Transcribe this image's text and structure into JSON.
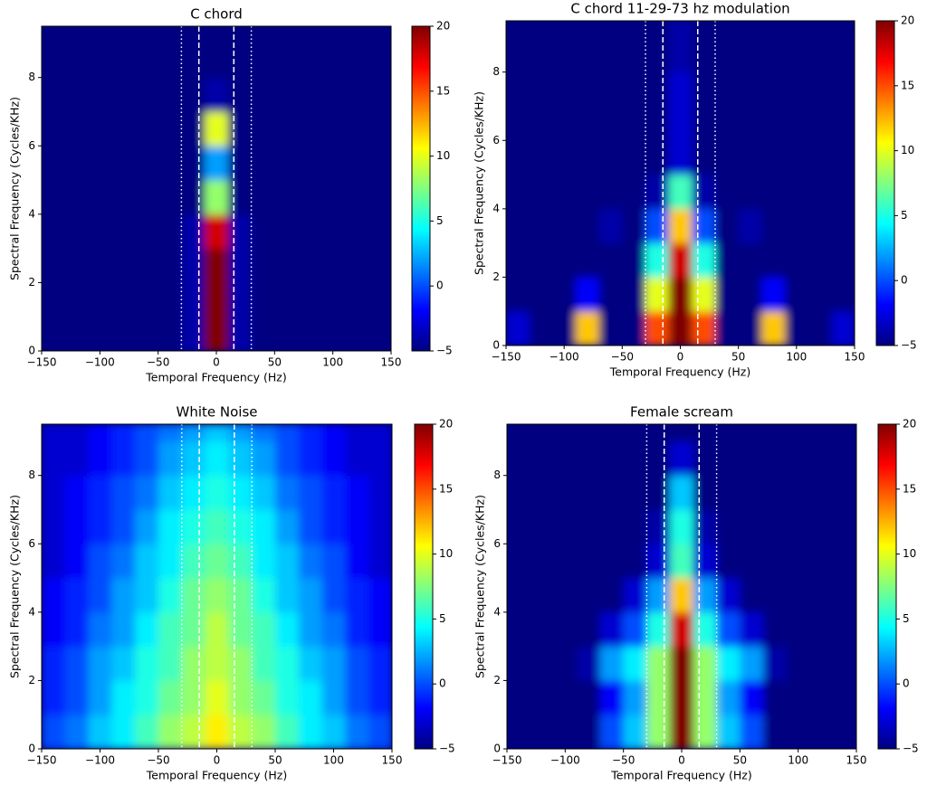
{
  "chart_data": [
    {
      "type": "heatmap",
      "title": "C chord",
      "xlabel": "Temporal Frequency (Hz)",
      "ylabel": "Spectral Frequency (Cycles/KHz)",
      "colormap": "jet",
      "xlim": [
        -150,
        150
      ],
      "ylim": [
        0,
        9.5
      ],
      "clim": [
        -5,
        20
      ],
      "xticks": [
        {
          "value": -150,
          "label": "−150"
        },
        {
          "value": -100,
          "label": "−100"
        },
        {
          "value": -50,
          "label": "−50"
        },
        0,
        50,
        100,
        150
      ],
      "yticks": [
        0,
        2,
        4,
        6,
        8
      ],
      "cticks": [
        {
          "value": -5,
          "label": "−5"
        },
        0,
        5,
        10,
        15,
        20
      ],
      "dashed_lines": [
        -15,
        15
      ],
      "dotted_lines": [
        -30,
        30
      ],
      "x_bins": [
        -150,
        -130,
        -110,
        -90,
        -70,
        -50,
        -30,
        -10,
        10,
        30,
        50,
        70,
        90,
        110,
        130,
        150
      ],
      "y_bins": [
        0,
        1,
        2,
        3,
        4,
        5,
        6,
        7,
        8,
        9,
        9.5
      ],
      "z": [
        [
          -5,
          -5,
          -5,
          -5,
          -5,
          -5,
          -4,
          20,
          -4,
          -5,
          -5,
          -5,
          -5,
          -5,
          -5
        ],
        [
          -5,
          -5,
          -5,
          -5,
          -5,
          -5,
          -4,
          20,
          -4,
          -5,
          -5,
          -5,
          -5,
          -5,
          -5
        ],
        [
          -5,
          -5,
          -5,
          -5,
          -5,
          -5,
          -4,
          20,
          -4,
          -5,
          -5,
          -5,
          -5,
          -5,
          -5
        ],
        [
          -5,
          -5,
          -5,
          -5,
          -5,
          -5,
          -4,
          18,
          -4,
          -5,
          -5,
          -5,
          -5,
          -5,
          -5
        ],
        [
          -5,
          -5,
          -5,
          -5,
          -5,
          -5,
          -5,
          8,
          -5,
          -5,
          -5,
          -5,
          -5,
          -5,
          -5
        ],
        [
          -5,
          -5,
          -5,
          -5,
          -5,
          -5,
          -5,
          2,
          -5,
          -5,
          -5,
          -5,
          -5,
          -5,
          -5
        ],
        [
          -5,
          -5,
          -5,
          -5,
          -5,
          -5,
          -5,
          10,
          -5,
          -5,
          -5,
          -5,
          -5,
          -5,
          -5
        ],
        [
          -5,
          -5,
          -5,
          -5,
          -5,
          -5,
          -5,
          -4,
          -5,
          -5,
          -5,
          -5,
          -5,
          -5,
          -5
        ],
        [
          -5,
          -5,
          -5,
          -5,
          -5,
          -5,
          -5,
          -5,
          -5,
          -5,
          -5,
          -5,
          -5,
          -5,
          -5
        ],
        [
          -5,
          -5,
          -5,
          -5,
          -5,
          -5,
          -5,
          -5,
          -5,
          -5,
          -5,
          -5,
          -5,
          -5,
          -5
        ]
      ]
    },
    {
      "type": "heatmap",
      "title": "C chord 11-29-73 hz modulation",
      "xlabel": "Temporal Frequency (Hz)",
      "ylabel": "Spectral Frequency (Cycles/KHz)",
      "colormap": "jet",
      "xlim": [
        -150,
        150
      ],
      "ylim": [
        0,
        9.5
      ],
      "clim": [
        -5,
        20
      ],
      "xticks": [
        {
          "value": -150,
          "label": "−150"
        },
        {
          "value": -100,
          "label": "−100"
        },
        {
          "value": -50,
          "label": "−50"
        },
        0,
        50,
        100,
        150
      ],
      "yticks": [
        0,
        2,
        4,
        6,
        8
      ],
      "cticks": [
        {
          "value": -5,
          "label": "−5"
        },
        0,
        5,
        10,
        15,
        20
      ],
      "dashed_lines": [
        -15,
        15
      ],
      "dotted_lines": [
        -30,
        30
      ],
      "x_bins": [
        -150,
        -130,
        -110,
        -90,
        -70,
        -50,
        -30,
        -10,
        10,
        30,
        50,
        70,
        90,
        110,
        130,
        150
      ],
      "y_bins": [
        0,
        1,
        2,
        3,
        4,
        5,
        6,
        7,
        8,
        9,
        9.5
      ],
      "z": [
        [
          -3,
          -5,
          -5,
          12,
          -5,
          -5,
          15,
          20,
          15,
          -5,
          -5,
          12,
          -5,
          -5,
          -3
        ],
        [
          -5,
          -5,
          -5,
          -2,
          -5,
          -5,
          10,
          20,
          10,
          -5,
          -5,
          -2,
          -5,
          -5,
          -5
        ],
        [
          -5,
          -5,
          -5,
          -5,
          -5,
          -5,
          5,
          18,
          5,
          -5,
          -5,
          -5,
          -5,
          -5,
          -5
        ],
        [
          -5,
          -5,
          -5,
          -5,
          -4,
          -5,
          0,
          12,
          0,
          -5,
          -4,
          -5,
          -5,
          -5,
          -5
        ],
        [
          -5,
          -5,
          -5,
          -5,
          -5,
          -5,
          -4,
          6,
          -4,
          -5,
          -5,
          -5,
          -5,
          -5,
          -5
        ],
        [
          -5,
          -5,
          -5,
          -5,
          -5,
          -5,
          -5,
          -3,
          -5,
          -5,
          -5,
          -5,
          -5,
          -5,
          -5
        ],
        [
          -5,
          -5,
          -5,
          -5,
          -5,
          -5,
          -5,
          -3,
          -5,
          -5,
          -5,
          -5,
          -5,
          -5,
          -5
        ],
        [
          -5,
          -5,
          -5,
          -5,
          -5,
          -5,
          -5,
          -3,
          -5,
          -5,
          -5,
          -5,
          -5,
          -5,
          -5
        ],
        [
          -5,
          -5,
          -5,
          -5,
          -5,
          -5,
          -5,
          -4,
          -5,
          -5,
          -5,
          -5,
          -5,
          -5,
          -5
        ],
        [
          -5,
          -5,
          -5,
          -5,
          -5,
          -5,
          -5,
          -4,
          -5,
          -5,
          -5,
          -5,
          -5,
          -5,
          -5
        ]
      ]
    },
    {
      "type": "heatmap",
      "title": "White Noise",
      "xlabel": "Temporal Frequency (Hz)",
      "ylabel": "Spectral Frequency (Cycles/KHz)",
      "colormap": "jet",
      "xlim": [
        -150,
        150
      ],
      "ylim": [
        0,
        9.5
      ],
      "clim": [
        -5,
        20
      ],
      "xticks": [
        {
          "value": -150,
          "label": "−150"
        },
        {
          "value": -100,
          "label": "−100"
        },
        {
          "value": -50,
          "label": "−50"
        },
        0,
        50,
        100,
        150
      ],
      "yticks": [
        0,
        2,
        4,
        6,
        8
      ],
      "cticks": [
        {
          "value": -5,
          "label": "−5"
        },
        0,
        5,
        10,
        15,
        20
      ],
      "dashed_lines": [
        -15,
        15
      ],
      "dotted_lines": [
        -30,
        30
      ],
      "x_bins": [
        -150,
        -130,
        -110,
        -90,
        -70,
        -50,
        -30,
        -10,
        10,
        30,
        50,
        70,
        90,
        110,
        130,
        150
      ],
      "y_bins": [
        0,
        1,
        2,
        3,
        4,
        5,
        6,
        7,
        8,
        9,
        9.5
      ],
      "z": [
        [
          0,
          1,
          3,
          4,
          6,
          8,
          9,
          11,
          9,
          8,
          6,
          4,
          3,
          1,
          0
        ],
        [
          -1,
          0,
          2,
          4,
          5,
          7,
          8,
          10,
          8,
          7,
          5,
          4,
          2,
          0,
          -1
        ],
        [
          -1,
          0,
          2,
          3,
          5,
          6,
          8,
          9,
          8,
          6,
          5,
          3,
          2,
          0,
          -1
        ],
        [
          -2,
          -1,
          1,
          2,
          4,
          6,
          7,
          9,
          7,
          6,
          4,
          2,
          1,
          -1,
          -2
        ],
        [
          -2,
          -1,
          0,
          2,
          3,
          5,
          7,
          8,
          7,
          5,
          3,
          2,
          0,
          -1,
          -2
        ],
        [
          -3,
          -2,
          0,
          1,
          3,
          4,
          6,
          7,
          6,
          4,
          3,
          1,
          0,
          -2,
          -3
        ],
        [
          -3,
          -2,
          -1,
          0,
          2,
          4,
          5,
          6,
          5,
          4,
          2,
          0,
          -1,
          -2,
          -3
        ],
        [
          -3,
          -2,
          -1,
          0,
          1,
          3,
          4,
          5,
          4,
          3,
          1,
          0,
          -1,
          -2,
          -3
        ],
        [
          -3,
          -3,
          -2,
          -1,
          0,
          2,
          3,
          4,
          3,
          2,
          0,
          -1,
          -2,
          -3,
          -3
        ],
        [
          -3,
          -3,
          -2,
          -1,
          0,
          1,
          2,
          3,
          2,
          1,
          0,
          -1,
          -2,
          -3,
          -3
        ]
      ]
    },
    {
      "type": "heatmap",
      "title": "Female scream",
      "xlabel": "Temporal Frequency (Hz)",
      "ylabel": "Spectral Frequency (Cycles/KHz)",
      "colormap": "jet",
      "xlim": [
        -150,
        150
      ],
      "ylim": [
        0,
        9.5
      ],
      "clim": [
        -5,
        20
      ],
      "xticks": [
        {
          "value": -150,
          "label": "−150"
        },
        {
          "value": -100,
          "label": "−100"
        },
        {
          "value": -50,
          "label": "−50"
        },
        0,
        50,
        100,
        150
      ],
      "yticks": [
        0,
        2,
        4,
        6,
        8
      ],
      "cticks": [
        {
          "value": -5,
          "label": "−5"
        },
        0,
        5,
        10,
        15,
        20
      ],
      "dashed_lines": [
        -15,
        15
      ],
      "dotted_lines": [
        -30,
        30
      ],
      "x_bins": [
        -150,
        -130,
        -110,
        -90,
        -70,
        -50,
        -30,
        -10,
        10,
        30,
        50,
        70,
        90,
        110,
        130,
        150
      ],
      "y_bins": [
        0,
        1,
        2,
        3,
        4,
        5,
        6,
        7,
        8,
        9,
        9.5
      ],
      "z": [
        [
          -5,
          -5,
          -5,
          -5,
          0,
          3,
          8,
          20,
          8,
          3,
          0,
          -5,
          -5,
          -5,
          -5
        ],
        [
          -5,
          -5,
          -5,
          -5,
          -2,
          2,
          8,
          20,
          8,
          2,
          -2,
          -5,
          -5,
          -5,
          -5
        ],
        [
          -5,
          -5,
          -5,
          -4,
          2,
          4,
          8,
          20,
          8,
          4,
          2,
          -4,
          -5,
          -5,
          -5
        ],
        [
          -5,
          -5,
          -5,
          -5,
          -3,
          0,
          5,
          18,
          5,
          0,
          -3,
          -5,
          -5,
          -5,
          -5
        ],
        [
          -5,
          -5,
          -5,
          -5,
          -5,
          -3,
          2,
          12,
          2,
          -3,
          -5,
          -5,
          -5,
          -5,
          -5
        ],
        [
          -5,
          -5,
          -5,
          -5,
          -5,
          -5,
          -3,
          6,
          -3,
          -5,
          -5,
          -5,
          -5,
          -5,
          -5
        ],
        [
          -5,
          -5,
          -5,
          -5,
          -5,
          -5,
          -4,
          5,
          -4,
          -5,
          -5,
          -5,
          -5,
          -5,
          -5
        ],
        [
          -5,
          -5,
          -5,
          -5,
          -5,
          -5,
          -5,
          3,
          -5,
          -5,
          -5,
          -5,
          -5,
          -5,
          -5
        ],
        [
          -5,
          -5,
          -5,
          -5,
          -5,
          -5,
          -5,
          -3,
          -5,
          -5,
          -5,
          -5,
          -5,
          -5,
          -5
        ],
        [
          -5,
          -5,
          -5,
          -5,
          -5,
          -5,
          -5,
          -5,
          -5,
          -5,
          -5,
          -5,
          -5,
          -5,
          -5
        ]
      ]
    }
  ]
}
